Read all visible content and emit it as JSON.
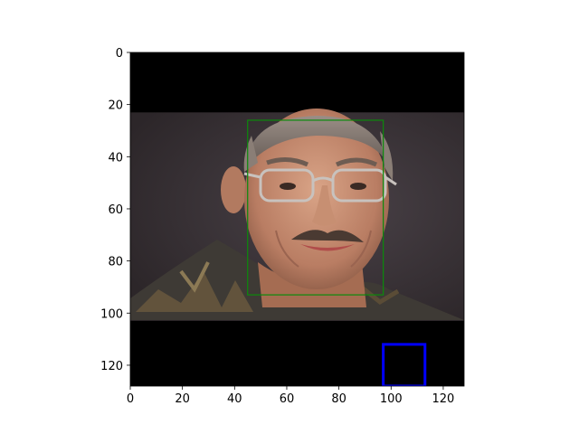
{
  "image_size": [
    128,
    128
  ],
  "axes": {
    "xlim": [
      0,
      128
    ],
    "ylim": [
      128,
      0
    ],
    "xticks": [
      0,
      20,
      40,
      60,
      80,
      100,
      120
    ],
    "yticks": [
      0,
      20,
      40,
      60,
      80,
      100,
      120
    ],
    "xtick_labels": [
      "0",
      "20",
      "40",
      "60",
      "80",
      "100",
      "120"
    ],
    "ytick_labels": [
      "0",
      "20",
      "40",
      "60",
      "80",
      "100",
      "120"
    ]
  },
  "regions": {
    "photo": {
      "x0": 0,
      "y0": 23,
      "x1": 128,
      "y1": 103
    },
    "face_box": {
      "x0": 45,
      "y0": 26,
      "x1": 97,
      "y1": 93,
      "color": "#0b8a0b"
    },
    "blue_box": {
      "x0": 97,
      "y0": 112,
      "x1": 113,
      "y1": 128,
      "color": "#0000ff"
    }
  }
}
